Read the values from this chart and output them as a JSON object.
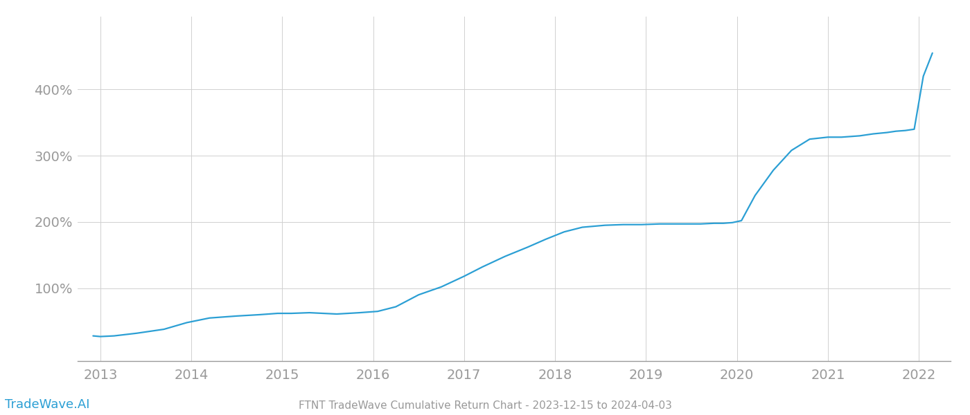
{
  "title": "FTNT TradeWave Cumulative Return Chart - 2023-12-15 to 2024-04-03",
  "watermark": "TradeWave.AI",
  "line_color": "#2b9fd4",
  "background_color": "#ffffff",
  "grid_color": "#d0d0d0",
  "x_years": [
    2012.92,
    2013.0,
    2013.15,
    2013.4,
    2013.7,
    2013.95,
    2014.2,
    2014.5,
    2014.75,
    2014.95,
    2015.1,
    2015.3,
    2015.6,
    2015.85,
    2016.05,
    2016.25,
    2016.5,
    2016.75,
    2017.0,
    2017.2,
    2017.45,
    2017.7,
    2017.9,
    2018.1,
    2018.3,
    2018.55,
    2018.75,
    2018.95,
    2019.15,
    2019.4,
    2019.6,
    2019.75,
    2019.85,
    2019.95,
    2020.05,
    2020.2,
    2020.4,
    2020.6,
    2020.8,
    2021.0,
    2021.15,
    2021.35,
    2021.5,
    2021.65,
    2021.75,
    2021.85,
    2021.95,
    2022.05,
    2022.15
  ],
  "y_values": [
    28,
    27,
    28,
    32,
    38,
    48,
    55,
    58,
    60,
    62,
    62,
    63,
    61,
    63,
    65,
    72,
    90,
    102,
    118,
    132,
    148,
    162,
    174,
    185,
    192,
    195,
    196,
    196,
    197,
    197,
    197,
    198,
    198,
    199,
    202,
    240,
    278,
    308,
    325,
    328,
    328,
    330,
    333,
    335,
    337,
    338,
    340,
    420,
    455
  ],
  "xtick_labels": [
    "2013",
    "2014",
    "2015",
    "2016",
    "2017",
    "2018",
    "2019",
    "2020",
    "2021",
    "2022"
  ],
  "xtick_positions": [
    2013,
    2014,
    2015,
    2016,
    2017,
    2018,
    2019,
    2020,
    2021,
    2022
  ],
  "ytick_labels": [
    "100%",
    "200%",
    "300%",
    "400%"
  ],
  "ytick_values": [
    100,
    200,
    300,
    400
  ],
  "ylim": [
    -10,
    510
  ],
  "xlim": [
    2012.75,
    2022.35
  ],
  "line_width": 1.6,
  "title_fontsize": 11,
  "tick_fontsize": 14,
  "watermark_fontsize": 13,
  "axis_color": "#999999",
  "tick_color": "#999999",
  "title_color": "#999999"
}
